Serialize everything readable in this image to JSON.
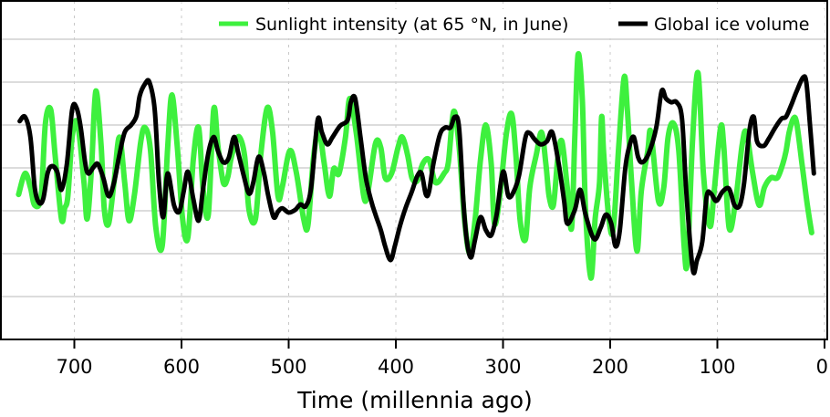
{
  "chart_data": {
    "type": "line",
    "title": "",
    "xlabel": "Time (millennia ago)",
    "ylabel": "",
    "xlim": [
      760,
      0
    ],
    "ylim": [
      0,
      7.9
    ],
    "x_reversed": true,
    "x_ticks": [
      700,
      600,
      500,
      400,
      300,
      200,
      100,
      0
    ],
    "x_tick_labels": [
      "700",
      "600",
      "500",
      "400",
      "300",
      "200",
      "100",
      "0"
    ],
    "y_gridlines": [
      1,
      2,
      3,
      4,
      5,
      6,
      7
    ],
    "grid": {
      "horizontal": "solid",
      "vertical": "dotted"
    },
    "legend_position": "top-right",
    "series": [
      {
        "name": "Sunlight intensity (at 65 °N, in June)",
        "color": "#3ef03e",
        "points": [
          [
            752,
            3.38
          ],
          [
            746,
            3.87
          ],
          [
            741,
            3.55
          ],
          [
            737,
            3.13
          ],
          [
            731,
            3.34
          ],
          [
            727,
            5.04
          ],
          [
            722,
            5.36
          ],
          [
            718,
            4.3
          ],
          [
            712,
            2.81
          ],
          [
            709,
            3.06
          ],
          [
            706,
            3.34
          ],
          [
            702,
            4.72
          ],
          [
            697,
            5.04
          ],
          [
            691,
            3.66
          ],
          [
            688,
            2.81
          ],
          [
            684,
            3.98
          ],
          [
            680,
            5.79
          ],
          [
            675,
            4.51
          ],
          [
            672,
            3.02
          ],
          [
            668,
            2.7
          ],
          [
            663,
            3.66
          ],
          [
            658,
            4.72
          ],
          [
            653,
            3.66
          ],
          [
            649,
            2.77
          ],
          [
            644,
            3.36
          ],
          [
            638,
            4.62
          ],
          [
            634,
            4.94
          ],
          [
            629,
            4.43
          ],
          [
            624,
            2.62
          ],
          [
            618,
            2.19
          ],
          [
            613,
            4.43
          ],
          [
            609,
            5.7
          ],
          [
            604,
            4.51
          ],
          [
            599,
            2.81
          ],
          [
            594,
            2.38
          ],
          [
            589,
            4.19
          ],
          [
            584,
            4.94
          ],
          [
            580,
            3.55
          ],
          [
            575,
            2.91
          ],
          [
            570,
            5.36
          ],
          [
            566,
            4.51
          ],
          [
            561,
            3.66
          ],
          [
            557,
            3.77
          ],
          [
            554,
            4.19
          ],
          [
            550,
            4.55
          ],
          [
            546,
            4.72
          ],
          [
            541,
            4.26
          ],
          [
            537,
            3.02
          ],
          [
            531,
            2.81
          ],
          [
            526,
            4.3
          ],
          [
            520,
            5.4
          ],
          [
            515,
            4.83
          ],
          [
            510,
            3.34
          ],
          [
            506,
            3.55
          ],
          [
            499,
            4.4
          ],
          [
            493,
            3.91
          ],
          [
            486,
            2.81
          ],
          [
            482,
            2.66
          ],
          [
            477,
            4.19
          ],
          [
            472,
            4.89
          ],
          [
            467,
            4.13
          ],
          [
            462,
            3.34
          ],
          [
            458,
            3.98
          ],
          [
            453,
            3.87
          ],
          [
            447,
            4.72
          ],
          [
            443,
            5.62
          ],
          [
            437,
            4.83
          ],
          [
            430,
            3.34
          ],
          [
            426,
            3.45
          ],
          [
            419,
            4.57
          ],
          [
            414,
            4.47
          ],
          [
            410,
            3.77
          ],
          [
            404,
            3.87
          ],
          [
            398,
            4.47
          ],
          [
            394,
            4.72
          ],
          [
            389,
            4.3
          ],
          [
            385,
            3.77
          ],
          [
            380,
            3.7
          ],
          [
            375,
            4.09
          ],
          [
            369,
            4.19
          ],
          [
            363,
            3.66
          ],
          [
            355,
            3.87
          ],
          [
            351,
            4.13
          ],
          [
            346,
            5.32
          ],
          [
            341,
            4.51
          ],
          [
            336,
            2.81
          ],
          [
            331,
            2.0
          ],
          [
            326,
            2.81
          ],
          [
            321,
            4.19
          ],
          [
            316,
            5.0
          ],
          [
            311,
            4.09
          ],
          [
            308,
            2.7
          ],
          [
            303,
            3.34
          ],
          [
            297,
            4.77
          ],
          [
            292,
            5.26
          ],
          [
            288,
            4.3
          ],
          [
            284,
            2.77
          ],
          [
            279,
            2.34
          ],
          [
            275,
            3.55
          ],
          [
            269,
            4.3
          ],
          [
            264,
            4.83
          ],
          [
            260,
            4.09
          ],
          [
            257,
            3.34
          ],
          [
            253,
            3.13
          ],
          [
            249,
            4.19
          ],
          [
            245,
            4.62
          ],
          [
            240,
            3.53
          ],
          [
            236,
            2.6
          ],
          [
            233,
            4.72
          ],
          [
            230,
            6.64
          ],
          [
            226,
            5.57
          ],
          [
            223,
            3.02
          ],
          [
            218,
            1.43
          ],
          [
            214,
            2.81
          ],
          [
            210,
            3.66
          ],
          [
            208,
            5.19
          ],
          [
            206,
            4.3
          ],
          [
            201,
            2.77
          ],
          [
            197,
            2.6
          ],
          [
            192,
            4.51
          ],
          [
            187,
            6.11
          ],
          [
            184,
            5.36
          ],
          [
            180,
            3.66
          ],
          [
            175,
            2.06
          ],
          [
            171,
            3.45
          ],
          [
            165,
            4.38
          ],
          [
            162,
            4.83
          ],
          [
            155,
            3.23
          ],
          [
            150,
            3.55
          ],
          [
            146,
            4.72
          ],
          [
            141,
            5.04
          ],
          [
            136,
            4.4
          ],
          [
            131,
            2.17
          ],
          [
            128,
            1.85
          ],
          [
            123,
            4.72
          ],
          [
            118,
            6.21
          ],
          [
            113,
            3.87
          ],
          [
            107,
            2.64
          ],
          [
            103,
            3.45
          ],
          [
            97,
            4.94
          ],
          [
            94,
            4.51
          ],
          [
            89,
            2.6
          ],
          [
            83,
            3.23
          ],
          [
            77,
            4.51
          ],
          [
            73,
            4.83
          ],
          [
            67,
            3.87
          ],
          [
            61,
            3.13
          ],
          [
            56,
            3.55
          ],
          [
            50,
            3.77
          ],
          [
            44,
            3.77
          ],
          [
            39,
            4.09
          ],
          [
            36,
            4.38
          ],
          [
            33,
            4.83
          ],
          [
            29,
            5.15
          ],
          [
            26,
            5.04
          ],
          [
            21,
            4.09
          ],
          [
            16,
            3.13
          ],
          [
            12,
            2.49
          ]
        ]
      },
      {
        "name": "Global ice volume",
        "color": "#000000",
        "points": [
          [
            751,
            5.09
          ],
          [
            746,
            5.19
          ],
          [
            741,
            4.72
          ],
          [
            737,
            3.55
          ],
          [
            733,
            3.19
          ],
          [
            729,
            3.28
          ],
          [
            725,
            3.87
          ],
          [
            721,
            4.04
          ],
          [
            716,
            3.91
          ],
          [
            712,
            3.49
          ],
          [
            707,
            4.09
          ],
          [
            702,
            5.36
          ],
          [
            698,
            5.4
          ],
          [
            694,
            4.94
          ],
          [
            690,
            4.13
          ],
          [
            687,
            3.87
          ],
          [
            682,
            4.02
          ],
          [
            678,
            4.09
          ],
          [
            673,
            3.77
          ],
          [
            668,
            3.34
          ],
          [
            663,
            3.66
          ],
          [
            658,
            4.3
          ],
          [
            653,
            4.83
          ],
          [
            647,
            5.0
          ],
          [
            642,
            5.21
          ],
          [
            639,
            5.68
          ],
          [
            634,
            5.96
          ],
          [
            630,
            6.0
          ],
          [
            625,
            5.36
          ],
          [
            621,
            3.66
          ],
          [
            617,
            2.85
          ],
          [
            613,
            3.87
          ],
          [
            607,
            3.13
          ],
          [
            602,
            2.98
          ],
          [
            598,
            3.45
          ],
          [
            594,
            3.91
          ],
          [
            589,
            3.28
          ],
          [
            584,
            2.77
          ],
          [
            580,
            3.49
          ],
          [
            575,
            4.34
          ],
          [
            570,
            4.72
          ],
          [
            566,
            4.4
          ],
          [
            561,
            4.13
          ],
          [
            556,
            4.23
          ],
          [
            551,
            4.72
          ],
          [
            547,
            4.34
          ],
          [
            542,
            3.83
          ],
          [
            537,
            3.4
          ],
          [
            533,
            3.66
          ],
          [
            528,
            4.26
          ],
          [
            523,
            3.87
          ],
          [
            519,
            3.34
          ],
          [
            514,
            2.85
          ],
          [
            510,
            2.98
          ],
          [
            506,
            3.06
          ],
          [
            500,
            2.96
          ],
          [
            494,
            3.02
          ],
          [
            489,
            3.15
          ],
          [
            484,
            3.11
          ],
          [
            479,
            3.55
          ],
          [
            473,
            5.11
          ],
          [
            469,
            4.83
          ],
          [
            464,
            4.55
          ],
          [
            459,
            4.72
          ],
          [
            452,
            4.98
          ],
          [
            445,
            5.11
          ],
          [
            442,
            5.53
          ],
          [
            438,
            5.62
          ],
          [
            433,
            4.72
          ],
          [
            428,
            3.77
          ],
          [
            423,
            3.23
          ],
          [
            419,
            2.91
          ],
          [
            414,
            2.55
          ],
          [
            410,
            2.17
          ],
          [
            405,
            1.85
          ],
          [
            401,
            2.17
          ],
          [
            396,
            2.66
          ],
          [
            391,
            3.06
          ],
          [
            385,
            3.45
          ],
          [
            380,
            3.81
          ],
          [
            376,
            3.87
          ],
          [
            372,
            3.38
          ],
          [
            369,
            3.45
          ],
          [
            365,
            4.09
          ],
          [
            359,
            4.77
          ],
          [
            354,
            4.94
          ],
          [
            349,
            4.94
          ],
          [
            345,
            5.19
          ],
          [
            341,
            4.94
          ],
          [
            337,
            3.23
          ],
          [
            334,
            2.34
          ],
          [
            330,
            1.91
          ],
          [
            326,
            2.34
          ],
          [
            321,
            2.85
          ],
          [
            316,
            2.55
          ],
          [
            311,
            2.43
          ],
          [
            306,
            2.91
          ],
          [
            300,
            3.91
          ],
          [
            295,
            3.34
          ],
          [
            290,
            3.45
          ],
          [
            285,
            3.83
          ],
          [
            279,
            4.72
          ],
          [
            275,
            4.81
          ],
          [
            271,
            4.68
          ],
          [
            265,
            4.55
          ],
          [
            259,
            4.62
          ],
          [
            254,
            4.83
          ],
          [
            248,
            4.09
          ],
          [
            243,
            3.23
          ],
          [
            240,
            2.7
          ],
          [
            233,
            3.02
          ],
          [
            228,
            3.49
          ],
          [
            223,
            2.91
          ],
          [
            215,
            2.34
          ],
          [
            209,
            2.6
          ],
          [
            204,
            2.91
          ],
          [
            199,
            2.7
          ],
          [
            195,
            2.17
          ],
          [
            191,
            2.55
          ],
          [
            186,
            3.98
          ],
          [
            182,
            4.51
          ],
          [
            178,
            4.72
          ],
          [
            174,
            4.26
          ],
          [
            170,
            4.13
          ],
          [
            164,
            4.34
          ],
          [
            157,
            4.94
          ],
          [
            152,
            5.79
          ],
          [
            148,
            5.62
          ],
          [
            143,
            5.53
          ],
          [
            138,
            5.53
          ],
          [
            133,
            5.15
          ],
          [
            129,
            3.45
          ],
          [
            123,
            1.64
          ],
          [
            119,
            1.85
          ],
          [
            114,
            2.28
          ],
          [
            110,
            3.34
          ],
          [
            106,
            3.4
          ],
          [
            101,
            3.23
          ],
          [
            95,
            3.45
          ],
          [
            89,
            3.51
          ],
          [
            84,
            3.13
          ],
          [
            79,
            3.13
          ],
          [
            75,
            3.66
          ],
          [
            70,
            4.89
          ],
          [
            66,
            5.19
          ],
          [
            63,
            4.62
          ],
          [
            57,
            4.51
          ],
          [
            52,
            4.68
          ],
          [
            46,
            4.94
          ],
          [
            40,
            5.15
          ],
          [
            36,
            5.19
          ],
          [
            31,
            5.47
          ],
          [
            26,
            5.79
          ],
          [
            20,
            6.11
          ],
          [
            17,
            6.0
          ],
          [
            14,
            5.15
          ],
          [
            10,
            3.87
          ]
        ]
      }
    ]
  }
}
